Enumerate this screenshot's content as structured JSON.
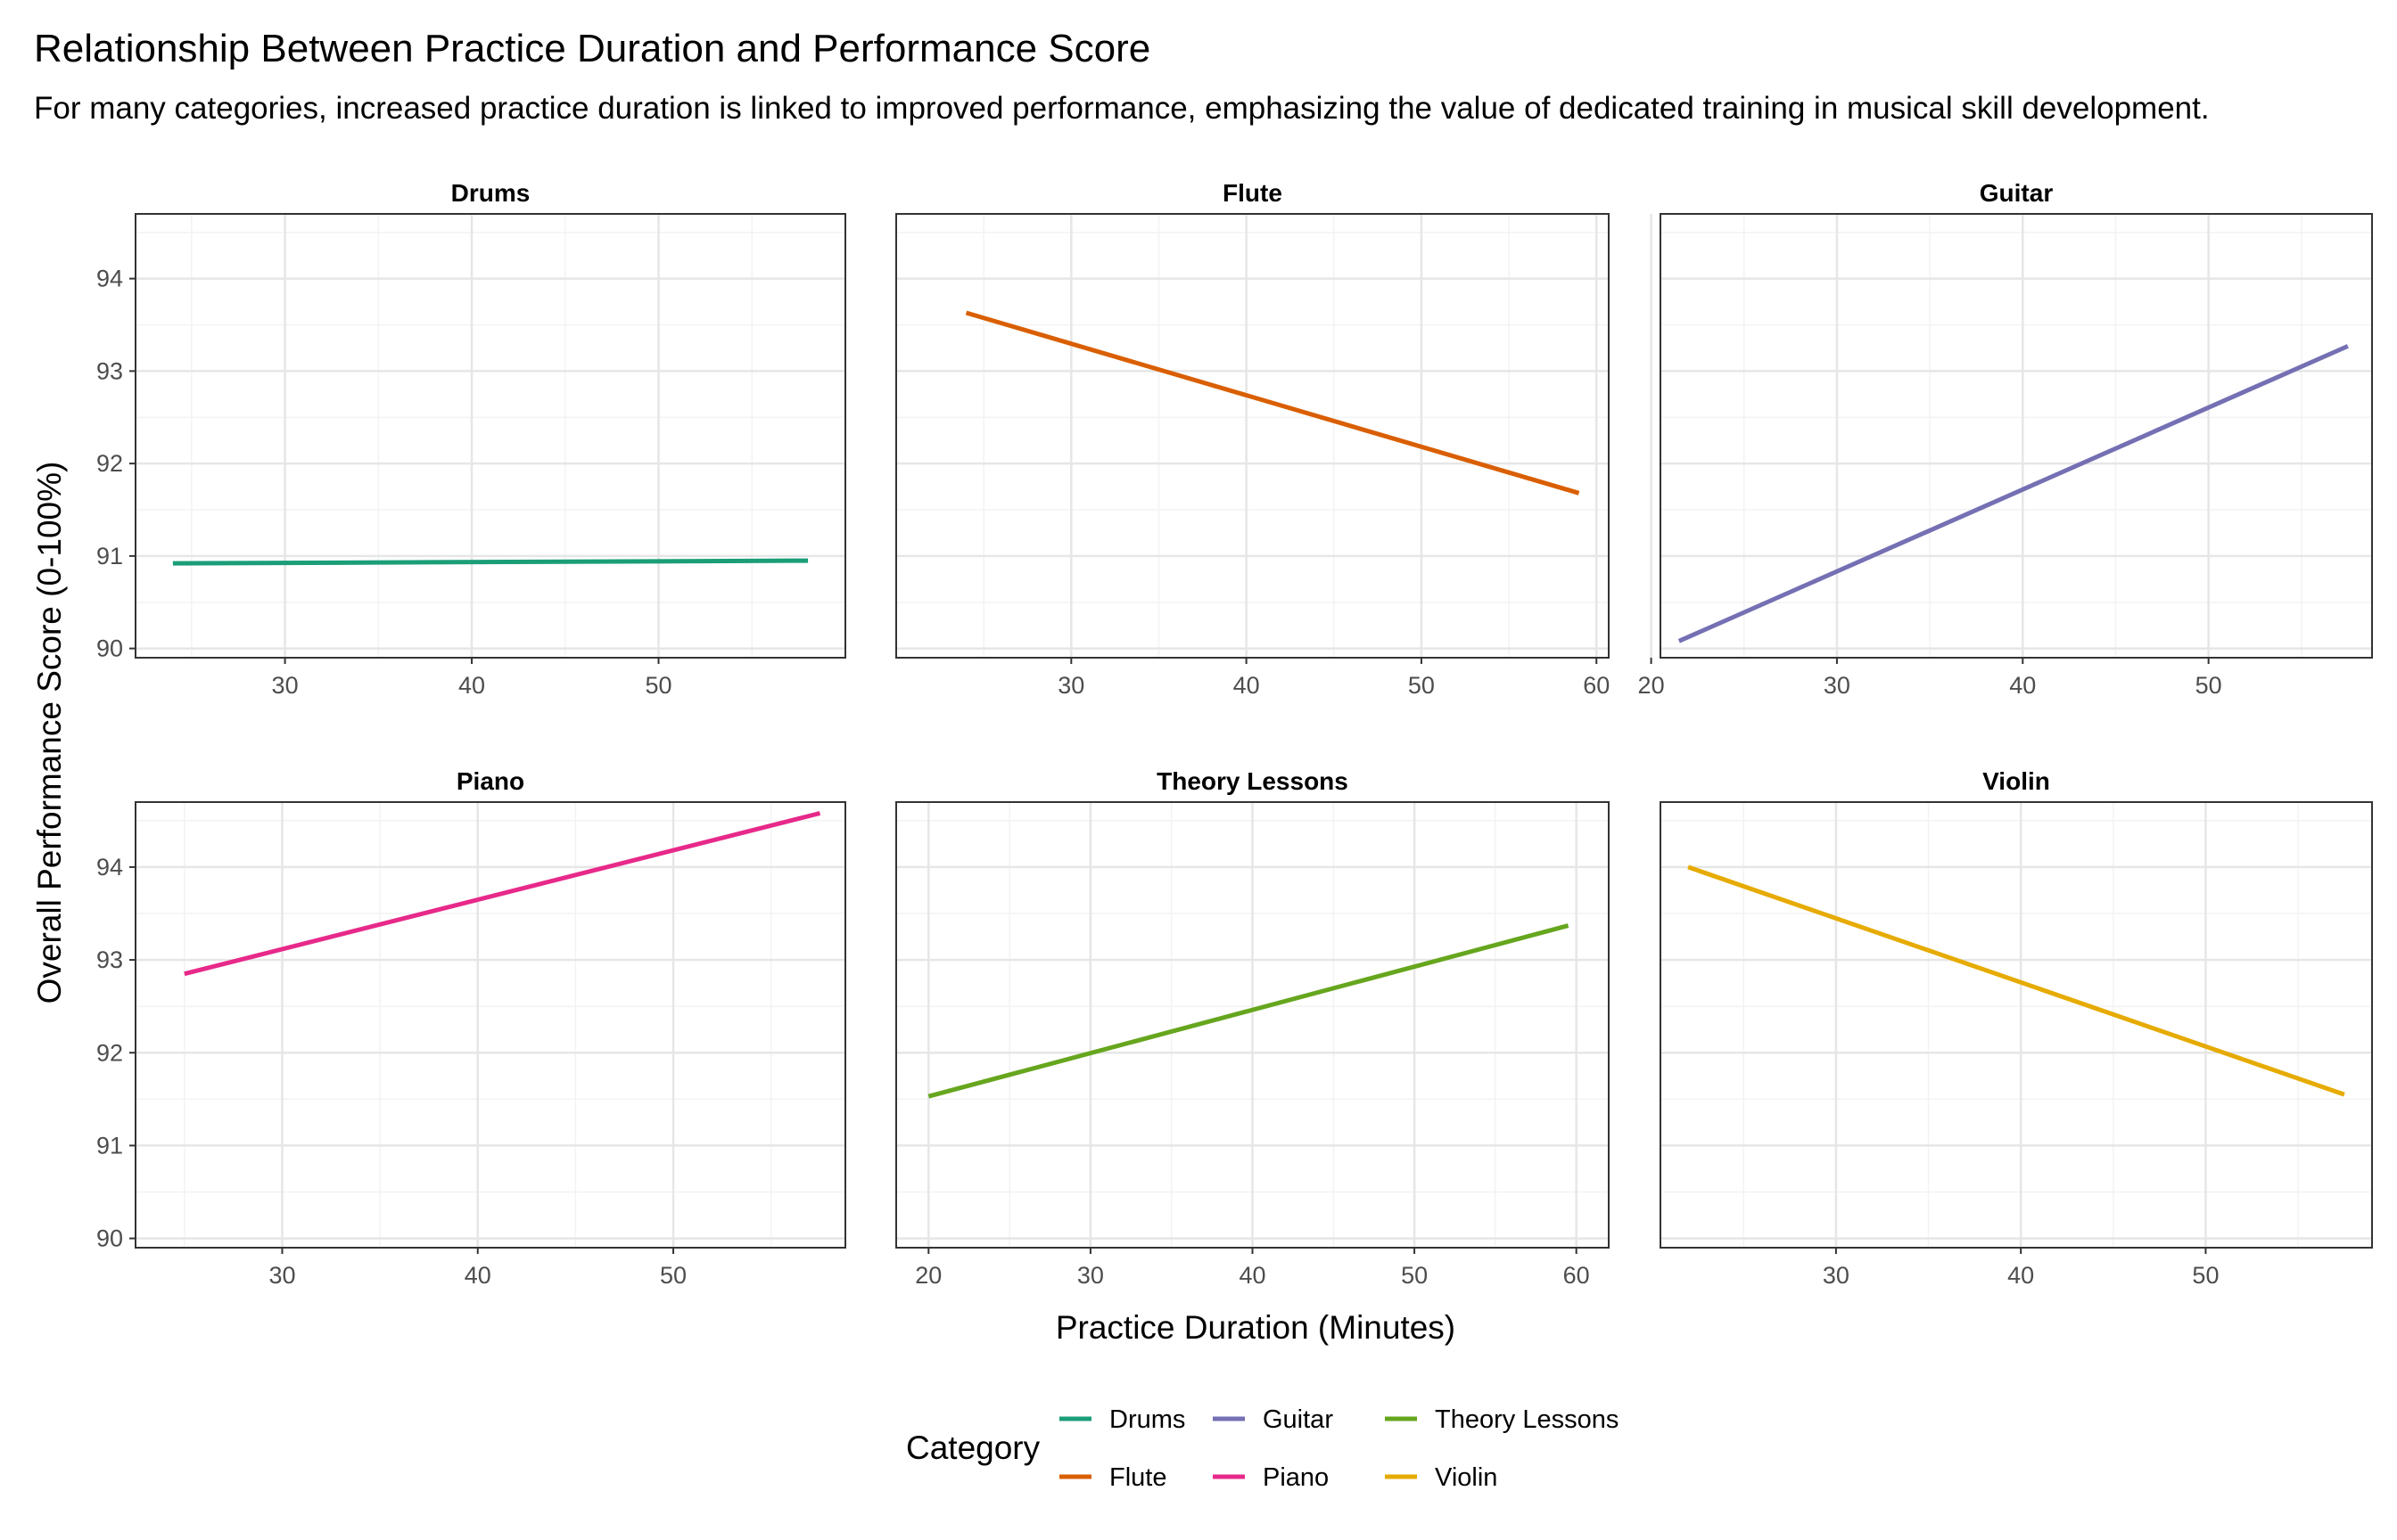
{
  "title": "Relationship Between Practice Duration and Performance Score",
  "subtitle": "For many categories, increased practice duration is linked to improved performance, emphasizing the value of dedicated training in musical skill development.",
  "chart_data": {
    "type": "line",
    "facet_layout": "2x3",
    "xlabel": "Practice Duration (Minutes)",
    "ylabel": "Overall Performance Score (0-100%)",
    "ylim": [
      89.9,
      94.7
    ],
    "yticks": [
      90,
      91,
      92,
      93,
      94
    ],
    "grid": true,
    "legend": {
      "title": "Category",
      "position": "bottom",
      "items": [
        {
          "label": "Drums",
          "color": "#1b9e77"
        },
        {
          "label": "Flute",
          "color": "#d95f02"
        },
        {
          "label": "Guitar",
          "color": "#7570b3"
        },
        {
          "label": "Piano",
          "color": "#e7298a"
        },
        {
          "label": "Theory Lessons",
          "color": "#66a61e"
        },
        {
          "label": "Violin",
          "color": "#e6ab02"
        }
      ]
    },
    "series": [
      {
        "name": "Drums",
        "color": "#1b9e77",
        "xlim": [
          22,
          60
        ],
        "xticks": [
          30,
          40,
          50
        ],
        "x": [
          24,
          58
        ],
        "y": [
          90.92,
          90.95
        ]
      },
      {
        "name": "Flute",
        "color": "#d95f02",
        "xlim": [
          20,
          60.7
        ],
        "xticks": [
          30,
          40,
          50,
          60
        ],
        "x": [
          24,
          59
        ],
        "y": [
          93.63,
          91.68
        ]
      },
      {
        "name": "Guitar",
        "color": "#7570b3",
        "xlim": [
          20.5,
          58.8
        ],
        "xticks": [
          20,
          30,
          40,
          50
        ],
        "x": [
          21.5,
          57.5
        ],
        "y": [
          90.08,
          93.27
        ]
      },
      {
        "name": "Piano",
        "color": "#e7298a",
        "xlim": [
          22.5,
          58.8
        ],
        "xticks": [
          30,
          40,
          50
        ],
        "x": [
          25,
          57.5
        ],
        "y": [
          92.85,
          94.58
        ]
      },
      {
        "name": "Theory Lessons",
        "color": "#66a61e",
        "xlim": [
          18,
          62
        ],
        "xticks": [
          20,
          30,
          40,
          50,
          60
        ],
        "x": [
          20,
          59.5
        ],
        "y": [
          91.53,
          93.37
        ]
      },
      {
        "name": "Violin",
        "color": "#e6ab02",
        "xlim": [
          20.5,
          59
        ],
        "xticks": [
          30,
          40,
          50
        ],
        "x": [
          22,
          57.5
        ],
        "y": [
          94.0,
          91.55
        ]
      }
    ]
  }
}
